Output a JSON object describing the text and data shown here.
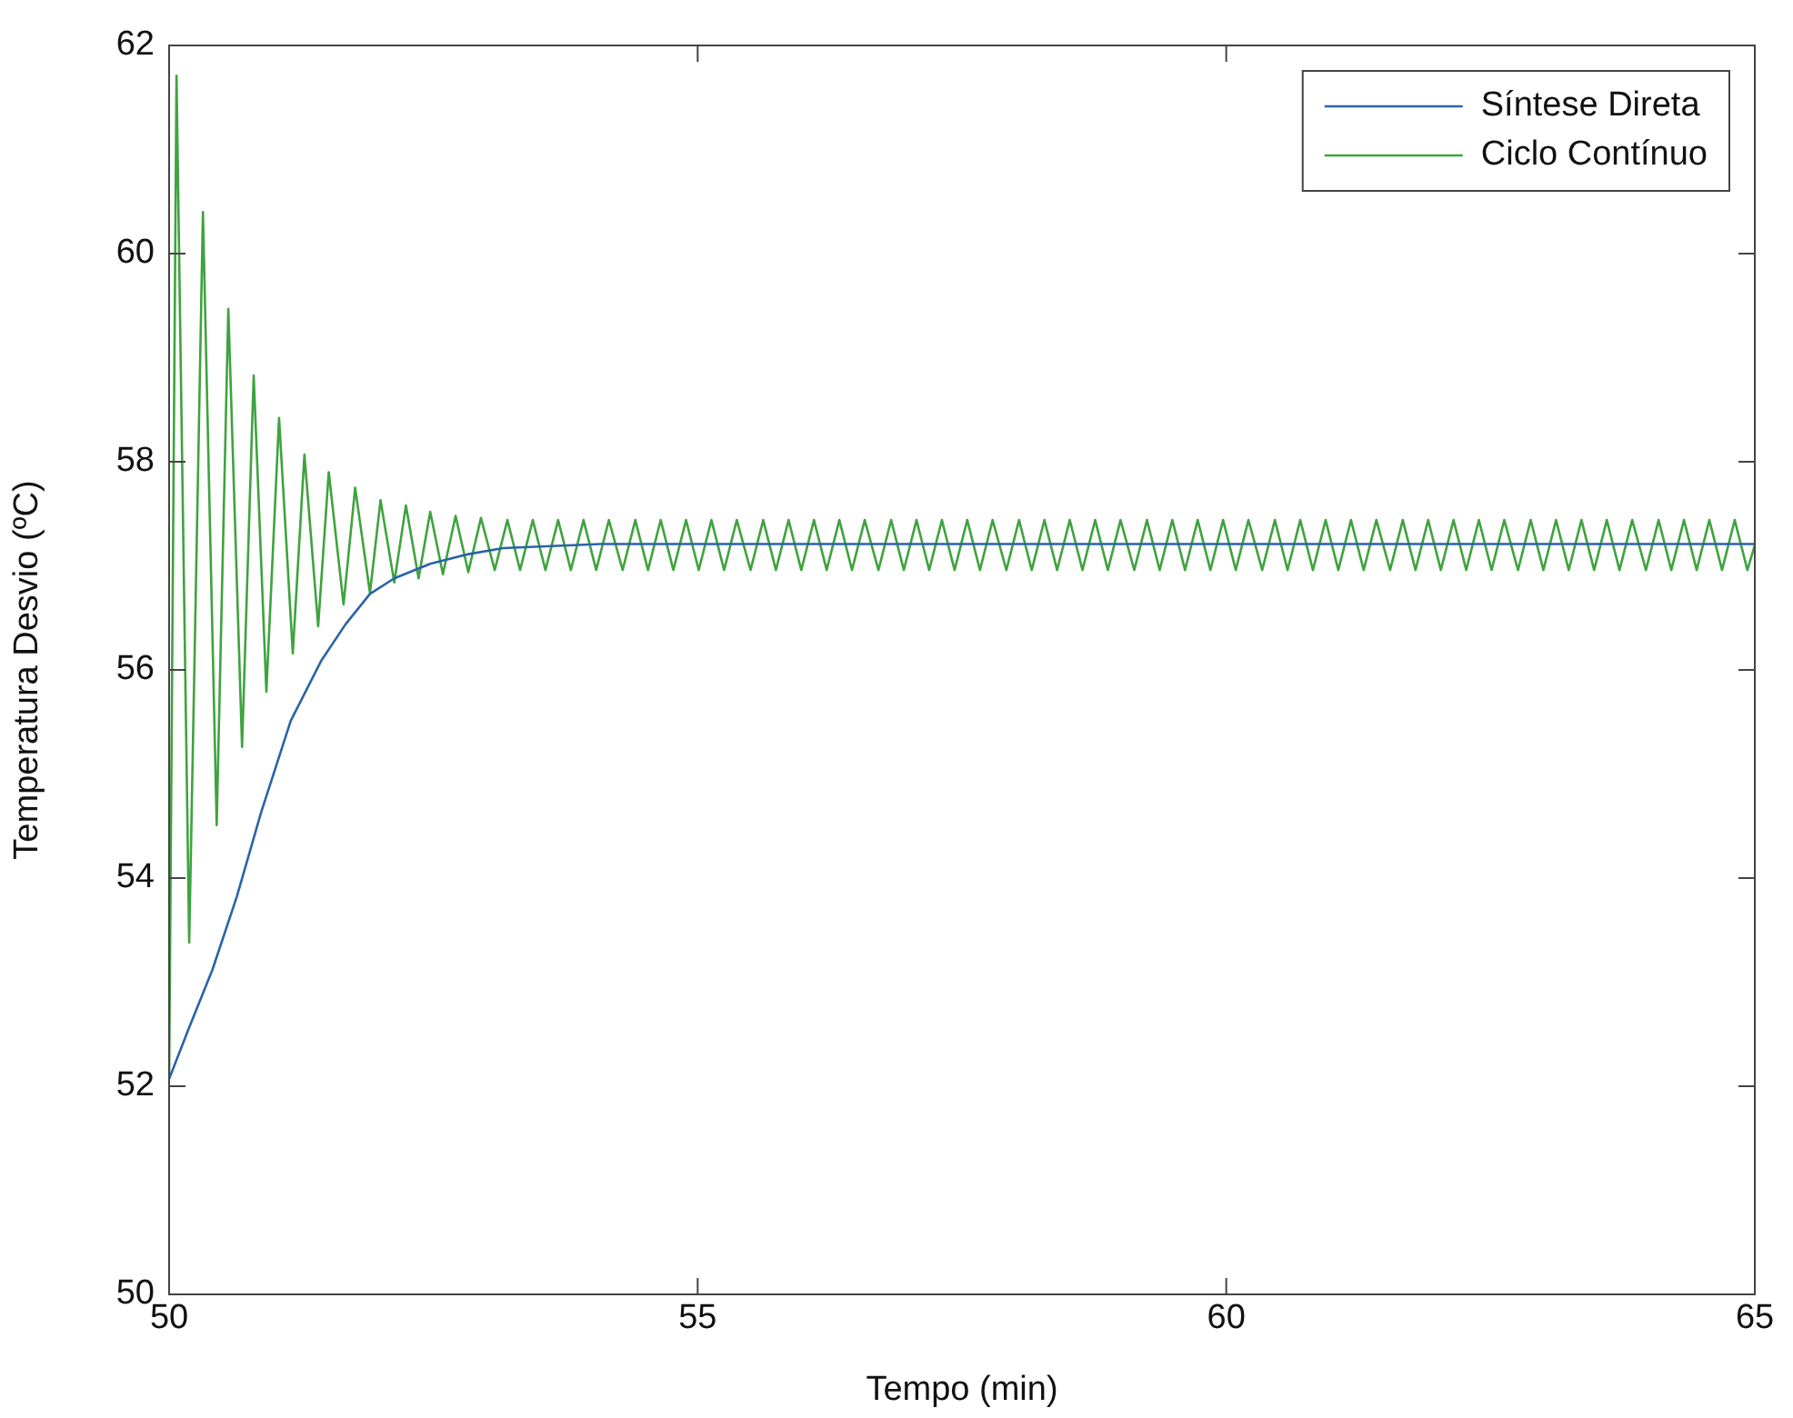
{
  "chart_data": {
    "type": "line",
    "xlabel": "Tempo (min)",
    "ylabel": "Temperatura Desvio (ºC)",
    "xlim": [
      50,
      65
    ],
    "xticks": [
      50,
      55,
      60,
      65
    ],
    "ylim": [
      50,
      62
    ],
    "yticks": [
      50,
      52,
      54,
      56,
      58,
      60,
      62
    ],
    "grid": false,
    "legend": "top right",
    "marker": "none",
    "line_style": "solid",
    "series": [
      {
        "name": "Síntese Direta",
        "color": "#2a63a8",
        "x": [
          50,
          50.18,
          50.41,
          50.64,
          50.87,
          51.15,
          51.44,
          51.67,
          51.9,
          52.13,
          52.47,
          52.82,
          53.16,
          54.08,
          65
        ],
        "values": [
          52.07,
          52.54,
          53.12,
          53.82,
          54.63,
          55.51,
          56.09,
          56.44,
          56.73,
          56.88,
          57.02,
          57.11,
          57.17,
          57.21,
          57.21
        ]
      },
      {
        "name": "Ciclo Contínuo",
        "color": "#3fa33f",
        "x": [
          50,
          50.07,
          50.19,
          50.32,
          50.45,
          50.56,
          50.69,
          50.8,
          50.92,
          51.04,
          51.17,
          51.28,
          51.41,
          51.51,
          51.65,
          51.76,
          51.9,
          52,
          52.13,
          52.24,
          52.36,
          52.47,
          52.59,
          52.71,
          52.83,
          52.95,
          53.08,
          53.2,
          53.32,
          53.44,
          53.56,
          53.68,
          53.8,
          53.92,
          54.04,
          54.16,
          54.29,
          54.41,
          54.53,
          54.65,
          54.77,
          54.89,
          55.01,
          55.13,
          55.25,
          55.37,
          55.5,
          55.62,
          55.74,
          55.86,
          55.98,
          56.1,
          56.22,
          56.34,
          56.46,
          56.58,
          56.71,
          56.83,
          56.95,
          57.07,
          57.19,
          57.31,
          57.43,
          57.55,
          57.67,
          57.79,
          57.92,
          58.04,
          58.16,
          58.28,
          58.4,
          58.52,
          58.64,
          58.76,
          58.88,
          59,
          59.13,
          59.25,
          59.37,
          59.49,
          59.61,
          59.73,
          59.85,
          59.97,
          60.09,
          60.21,
          60.34,
          60.46,
          60.58,
          60.7,
          60.82,
          60.94,
          61.06,
          61.18,
          61.3,
          61.42,
          61.55,
          61.67,
          61.79,
          61.91,
          62.03,
          62.15,
          62.27,
          62.39,
          62.51,
          62.63,
          62.76,
          62.88,
          63,
          63.12,
          63.24,
          63.36,
          63.48,
          63.6,
          63.72,
          63.84,
          63.97,
          64.09,
          64.21,
          64.33,
          64.45,
          64.57,
          64.69,
          64.81,
          64.93,
          65
        ],
        "values": [
          52.07,
          61.71,
          53.38,
          60.4,
          54.51,
          59.47,
          55.26,
          58.83,
          55.79,
          58.42,
          56.16,
          58.07,
          56.42,
          57.9,
          56.63,
          57.75,
          56.74,
          57.63,
          56.84,
          57.58,
          56.88,
          57.52,
          56.92,
          57.48,
          56.94,
          57.46,
          56.96,
          57.44,
          56.96,
          57.44,
          56.96,
          57.44,
          56.96,
          57.44,
          56.96,
          57.44,
          56.96,
          57.44,
          56.96,
          57.44,
          56.96,
          57.44,
          56.96,
          57.44,
          56.96,
          57.44,
          56.96,
          57.44,
          56.96,
          57.44,
          56.96,
          57.44,
          56.96,
          57.44,
          56.96,
          57.44,
          56.96,
          57.44,
          56.96,
          57.44,
          56.96,
          57.44,
          56.96,
          57.44,
          56.96,
          57.44,
          56.96,
          57.44,
          56.96,
          57.44,
          56.96,
          57.44,
          56.96,
          57.44,
          56.96,
          57.44,
          56.96,
          57.44,
          56.96,
          57.44,
          56.96,
          57.44,
          56.96,
          57.44,
          56.96,
          57.44,
          56.96,
          57.44,
          56.96,
          57.44,
          56.96,
          57.44,
          56.96,
          57.44,
          56.96,
          57.44,
          56.96,
          57.44,
          56.96,
          57.44,
          56.96,
          57.44,
          56.96,
          57.44,
          56.96,
          57.44,
          56.96,
          57.44,
          56.96,
          57.44,
          56.96,
          57.44,
          56.96,
          57.44,
          56.96,
          57.44,
          56.96,
          57.44,
          56.96,
          57.44,
          56.96,
          57.44,
          56.96,
          57.44,
          56.96,
          57.2
        ]
      }
    ]
  }
}
